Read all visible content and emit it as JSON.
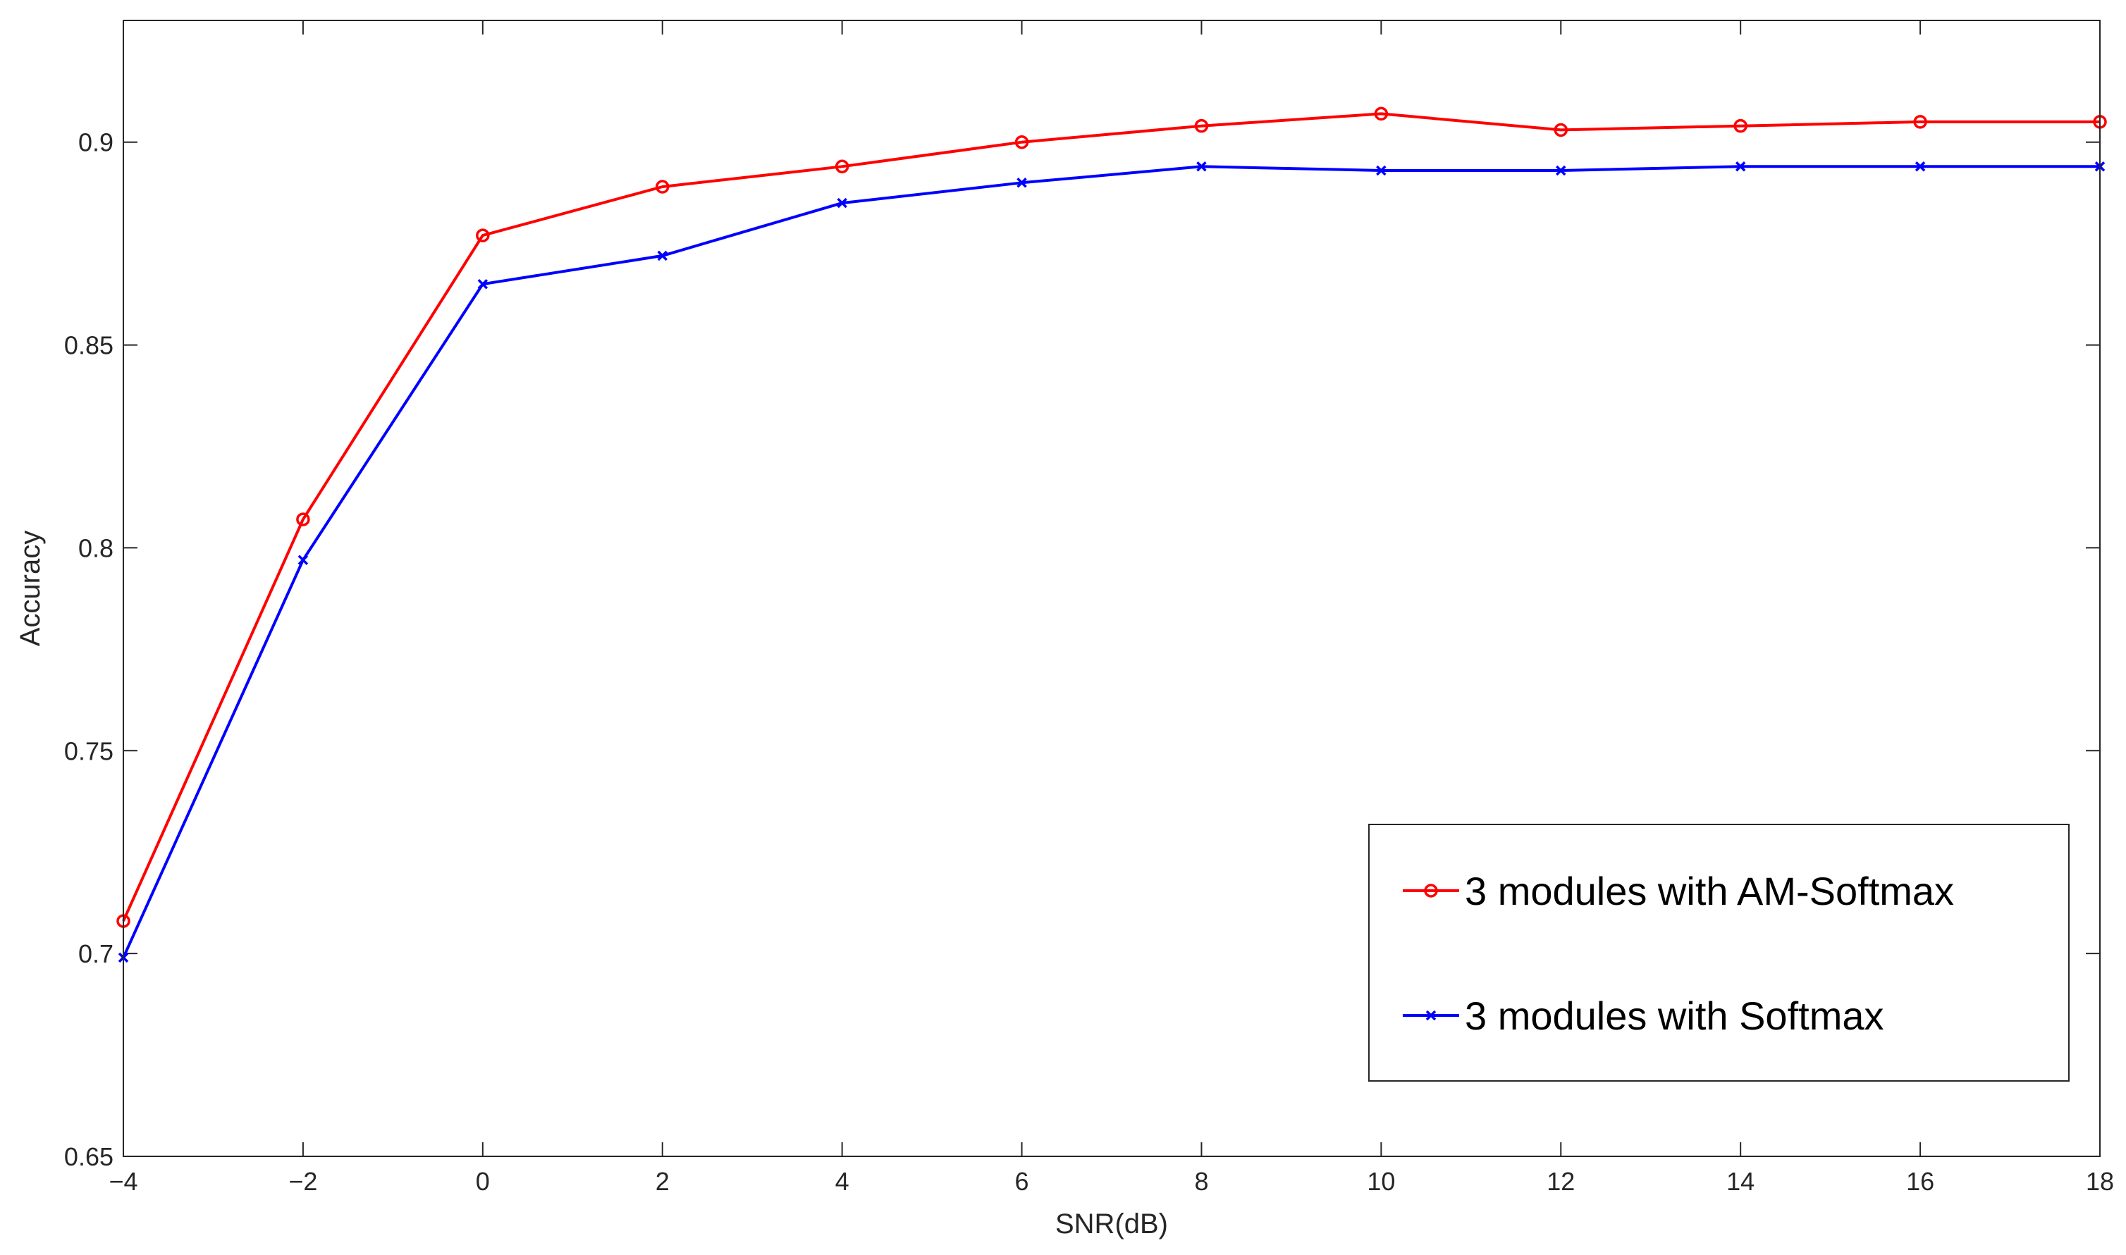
{
  "chart_data": {
    "type": "line",
    "xlabel": "SNR(dB)",
    "ylabel": "Accuracy",
    "x": [
      -4,
      -2,
      0,
      2,
      4,
      6,
      8,
      10,
      12,
      14,
      16,
      18
    ],
    "xlim": [
      -4,
      18
    ],
    "ylim": [
      0.65,
      0.93
    ],
    "x_ticks": [
      -4,
      -2,
      0,
      2,
      4,
      6,
      8,
      10,
      12,
      14,
      16,
      18
    ],
    "x_tick_labels": [
      "−4",
      "−2",
      "0",
      "2",
      "4",
      "6",
      "8",
      "10",
      "12",
      "14",
      "16",
      "18"
    ],
    "y_ticks": [
      0.65,
      0.7,
      0.75,
      0.8,
      0.85,
      0.9
    ],
    "y_tick_labels": [
      "0.65",
      "0.7",
      "0.75",
      "0.8",
      "0.85",
      "0.9"
    ],
    "grid": false,
    "legend_position": "bottom-right",
    "series": [
      {
        "name": "3 modules with AM-Softmax",
        "color": "#ff0000",
        "marker": "circle",
        "values": [
          0.708,
          0.807,
          0.877,
          0.889,
          0.894,
          0.9,
          0.904,
          0.907,
          0.903,
          0.904,
          0.905,
          0.905
        ]
      },
      {
        "name": "3 modules with Softmax",
        "color": "#0000ff",
        "marker": "x",
        "values": [
          0.699,
          0.797,
          0.865,
          0.872,
          0.885,
          0.89,
          0.894,
          0.893,
          0.893,
          0.894,
          0.894,
          0.894
        ]
      }
    ]
  }
}
